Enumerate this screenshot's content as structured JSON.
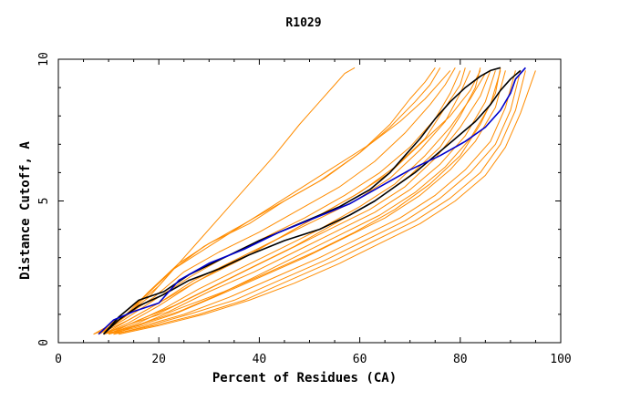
{
  "chart_data": {
    "type": "line",
    "title": "R1029",
    "xlabel": "Percent of Residues (CA)",
    "ylabel": "Distance Cutoff, A",
    "xlim": [
      0,
      100
    ],
    "ylim": [
      0,
      10
    ],
    "x_ticks": [
      "0",
      "20",
      "40",
      "60",
      "80",
      "100"
    ],
    "y_ticks": [
      "0",
      "5",
      "10"
    ],
    "grid": false,
    "legend": "none",
    "colors": {
      "models": "#ff8c00",
      "highlight_black": "#000000",
      "highlight_blue": "#0000cc"
    },
    "series": [
      {
        "color": "#ff8c00",
        "x": [
          7,
          10,
          14,
          16,
          20,
          24,
          28,
          33,
          38,
          43,
          48,
          52,
          55,
          57,
          59
        ],
        "y": [
          0.3,
          0.5,
          1.0,
          1.4,
          2.0,
          2.8,
          3.6,
          4.6,
          5.6,
          6.6,
          7.7,
          8.5,
          9.1,
          9.5,
          9.7
        ]
      },
      {
        "color": "#ff8c00",
        "x": [
          7,
          12,
          18,
          23,
          30,
          38,
          46,
          54,
          62,
          68,
          73,
          76,
          78
        ],
        "y": [
          0.3,
          0.8,
          1.6,
          2.6,
          3.4,
          4.3,
          5.2,
          6.1,
          7.0,
          7.8,
          8.6,
          9.2,
          9.6
        ]
      },
      {
        "color": "#ff8c00",
        "x": [
          8,
          13,
          18,
          24,
          30,
          38,
          45,
          53,
          60,
          66,
          71,
          74,
          76
        ],
        "y": [
          0.3,
          0.9,
          1.8,
          2.8,
          3.5,
          4.2,
          5.0,
          5.8,
          6.7,
          7.6,
          8.5,
          9.1,
          9.7
        ]
      },
      {
        "color": "#ff8c00",
        "x": [
          8,
          12,
          17,
          23,
          29,
          36,
          44,
          52,
          60,
          66,
          70,
          73,
          75
        ],
        "y": [
          0.3,
          0.9,
          1.6,
          2.6,
          3.4,
          4.1,
          4.9,
          5.7,
          6.7,
          7.7,
          8.6,
          9.2,
          9.7
        ]
      },
      {
        "color": "#ff8c00",
        "x": [
          8,
          13,
          19,
          26,
          33,
          41,
          49,
          57,
          64,
          70,
          75,
          78,
          80
        ],
        "y": [
          0.3,
          0.8,
          1.5,
          2.3,
          3.0,
          3.7,
          4.4,
          5.2,
          6.0,
          6.9,
          7.9,
          8.8,
          9.6
        ]
      },
      {
        "color": "#ff8c00",
        "x": [
          9,
          14,
          20,
          27,
          35,
          43,
          51,
          59,
          66,
          72,
          77,
          80,
          82
        ],
        "y": [
          0.3,
          0.7,
          1.3,
          2.1,
          2.9,
          3.6,
          4.3,
          5.0,
          5.8,
          6.8,
          7.8,
          8.8,
          9.6
        ]
      },
      {
        "color": "#ff8c00",
        "x": [
          9,
          15,
          21,
          28,
          36,
          44,
          52,
          60,
          67,
          73,
          78,
          82,
          85
        ],
        "y": [
          0.3,
          0.7,
          1.2,
          1.9,
          2.6,
          3.3,
          4.0,
          4.8,
          5.6,
          6.6,
          7.6,
          8.6,
          9.5
        ]
      },
      {
        "color": "#ff8c00",
        "x": [
          8,
          14,
          20,
          27,
          35,
          43,
          51,
          59,
          66,
          72,
          78,
          82,
          84
        ],
        "y": [
          0.3,
          0.8,
          1.4,
          2.2,
          2.9,
          3.6,
          4.4,
          5.2,
          6.0,
          7.0,
          8.0,
          8.9,
          9.6
        ]
      },
      {
        "color": "#ff8c00",
        "x": [
          10,
          16,
          22,
          30,
          38,
          46,
          54,
          62,
          69,
          75,
          80,
          84,
          86
        ],
        "y": [
          0.3,
          0.7,
          1.2,
          1.9,
          2.6,
          3.3,
          4.0,
          4.7,
          5.5,
          6.5,
          7.6,
          8.7,
          9.6
        ]
      },
      {
        "color": "#ff8c00",
        "x": [
          9,
          15,
          22,
          30,
          39,
          47,
          55,
          63,
          70,
          76,
          81,
          85,
          87
        ],
        "y": [
          0.3,
          0.7,
          1.1,
          1.8,
          2.5,
          3.2,
          3.9,
          4.6,
          5.4,
          6.3,
          7.3,
          8.5,
          9.6
        ]
      },
      {
        "color": "#ff8c00",
        "x": [
          10,
          17,
          24,
          32,
          40,
          48,
          56,
          64,
          71,
          77,
          82,
          86,
          88
        ],
        "y": [
          0.3,
          0.7,
          1.1,
          1.7,
          2.4,
          3.1,
          3.8,
          4.5,
          5.3,
          6.2,
          7.2,
          8.4,
          9.6
        ]
      },
      {
        "color": "#ff8c00",
        "x": [
          9,
          16,
          23,
          31,
          40,
          49,
          57,
          65,
          72,
          78,
          83,
          87,
          89
        ],
        "y": [
          0.3,
          0.6,
          1.0,
          1.6,
          2.3,
          3.0,
          3.7,
          4.4,
          5.2,
          6.1,
          7.1,
          8.3,
          9.6
        ]
      },
      {
        "color": "#ff8c00",
        "x": [
          10,
          17,
          25,
          34,
          43,
          52,
          60,
          68,
          75,
          81,
          86,
          89,
          91
        ],
        "y": [
          0.3,
          0.6,
          1.0,
          1.6,
          2.3,
          3.0,
          3.7,
          4.4,
          5.2,
          6.1,
          7.1,
          8.3,
          9.6
        ]
      },
      {
        "color": "#ff8c00",
        "x": [
          11,
          18,
          26,
          35,
          44,
          53,
          61,
          69,
          76,
          82,
          87,
          90,
          92
        ],
        "y": [
          0.3,
          0.6,
          1.0,
          1.5,
          2.2,
          2.9,
          3.6,
          4.3,
          5.1,
          6.0,
          7.0,
          8.2,
          9.6
        ]
      },
      {
        "color": "#ff8c00",
        "x": [
          11,
          19,
          28,
          37,
          46,
          55,
          63,
          71,
          78,
          84,
          88,
          91,
          93
        ],
        "y": [
          0.3,
          0.6,
          1.0,
          1.5,
          2.2,
          2.9,
          3.6,
          4.3,
          5.1,
          6.0,
          7.0,
          8.2,
          9.6
        ]
      },
      {
        "color": "#ff8c00",
        "x": [
          12,
          20,
          29,
          38,
          47,
          56,
          64,
          72,
          79,
          85,
          89,
          92,
          95
        ],
        "y": [
          0.3,
          0.6,
          1.0,
          1.5,
          2.1,
          2.8,
          3.5,
          4.2,
          5.0,
          5.9,
          6.9,
          8.1,
          9.6
        ]
      },
      {
        "color": "#ff8c00",
        "x": [
          8,
          13,
          19,
          25,
          32,
          40,
          48,
          56,
          63,
          69,
          74,
          77,
          79
        ],
        "y": [
          0.3,
          0.9,
          1.6,
          2.5,
          3.2,
          3.9,
          4.7,
          5.5,
          6.4,
          7.4,
          8.4,
          9.1,
          9.7
        ]
      },
      {
        "color": "#ff8c00",
        "x": [
          9,
          14,
          20,
          28,
          36,
          44,
          52,
          60,
          67,
          73,
          77,
          80,
          81
        ],
        "y": [
          0.3,
          0.8,
          1.4,
          2.2,
          2.9,
          3.7,
          4.5,
          5.3,
          6.2,
          7.2,
          8.3,
          9.1,
          9.7
        ]
      },
      {
        "color": "#ff8c00",
        "x": [
          10,
          16,
          23,
          31,
          39,
          47,
          55,
          63,
          70,
          76,
          80,
          83,
          84
        ],
        "y": [
          0.3,
          0.8,
          1.3,
          2.0,
          2.7,
          3.4,
          4.2,
          5.0,
          5.9,
          6.9,
          8.0,
          9.0,
          9.7
        ]
      },
      {
        "color": "#ff8c00",
        "x": [
          11,
          17,
          24,
          33,
          42,
          51,
          59,
          67,
          74,
          80,
          84,
          87,
          88
        ],
        "y": [
          0.3,
          0.7,
          1.2,
          1.8,
          2.5,
          3.2,
          3.9,
          4.7,
          5.6,
          6.6,
          7.7,
          8.8,
          9.7
        ]
      }
    ],
    "highlight_series": [
      {
        "color": "#000000",
        "x": [
          9,
          12,
          16,
          21,
          26,
          32,
          38,
          45,
          52,
          58,
          63,
          67,
          71,
          75,
          79,
          83,
          86,
          88,
          90,
          92
        ],
        "y": [
          0.3,
          0.8,
          1.3,
          1.7,
          2.2,
          2.6,
          3.1,
          3.6,
          4.0,
          4.5,
          5.0,
          5.5,
          6.0,
          6.6,
          7.2,
          7.8,
          8.4,
          8.9,
          9.3,
          9.6
        ]
      },
      {
        "color": "#000000",
        "x": [
          9,
          12,
          16,
          21,
          26,
          33,
          40,
          48,
          56,
          62,
          66,
          69,
          72,
          75,
          78,
          81,
          84,
          86,
          88
        ],
        "y": [
          0.3,
          0.9,
          1.5,
          1.8,
          2.4,
          3.0,
          3.6,
          4.2,
          4.8,
          5.4,
          6.0,
          6.6,
          7.2,
          7.9,
          8.5,
          9.0,
          9.4,
          9.6,
          9.7
        ]
      },
      {
        "color": "#0000cc",
        "x": [
          8,
          11,
          15,
          20,
          24,
          30,
          37,
          44,
          51,
          58,
          64,
          70,
          76,
          81,
          85,
          88,
          90,
          91,
          93
        ],
        "y": [
          0.3,
          0.8,
          1.1,
          1.4,
          2.2,
          2.8,
          3.3,
          3.9,
          4.4,
          4.9,
          5.5,
          6.1,
          6.6,
          7.1,
          7.6,
          8.2,
          8.8,
          9.3,
          9.7
        ]
      }
    ]
  }
}
